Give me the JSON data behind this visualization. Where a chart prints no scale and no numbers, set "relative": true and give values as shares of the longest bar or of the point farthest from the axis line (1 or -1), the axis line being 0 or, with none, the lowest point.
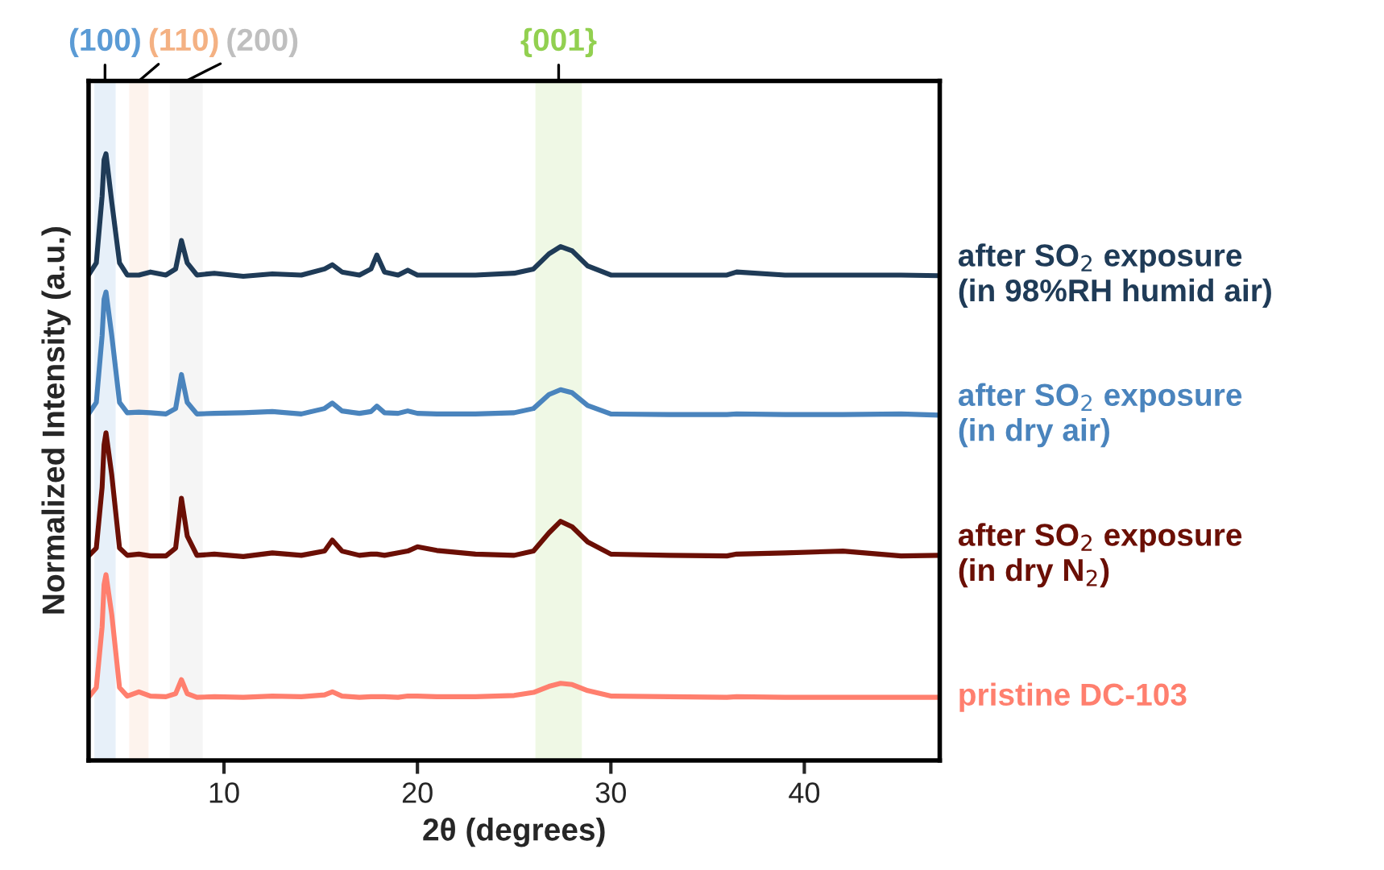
{
  "chart_data": {
    "type": "line",
    "relative": true,
    "xlabel": "2θ (degrees)",
    "ylabel": "Normalized Intensity (a.u.)",
    "xlim": [
      3,
      47
    ],
    "xticks": [
      10,
      20,
      30,
      40
    ],
    "grid": false,
    "legend": false,
    "tick_labels": "x",
    "line_style": "solid",
    "marker": "none",
    "x": [
      3,
      3.4,
      3.7,
      3.8,
      3.9,
      4.2,
      4.6,
      5.0,
      5.6,
      6.2,
      7.0,
      7.5,
      7.8,
      8.1,
      8.6,
      9.5,
      11,
      12.5,
      14,
      15.2,
      15.6,
      16.1,
      17,
      17.6,
      17.9,
      18.3,
      19,
      19.5,
      20,
      21,
      23,
      25,
      26,
      26.8,
      27.4,
      28,
      28.8,
      30,
      33,
      36,
      36.5,
      39,
      42,
      45,
      47
    ],
    "series": [
      {
        "name": "after SO$_{2}$ exposure\n(in 98%RH humid air)",
        "color": "#1f3b57",
        "values": [
          0.8,
          0.82,
          0.93,
          0.99,
          1.0,
          0.92,
          0.82,
          0.8,
          0.8,
          0.805,
          0.8,
          0.81,
          0.857,
          0.82,
          0.8,
          0.803,
          0.798,
          0.802,
          0.8,
          0.81,
          0.817,
          0.805,
          0.8,
          0.81,
          0.833,
          0.805,
          0.8,
          0.808,
          0.8,
          0.8,
          0.8,
          0.803,
          0.81,
          0.835,
          0.847,
          0.84,
          0.815,
          0.8,
          0.8,
          0.8,
          0.805,
          0.8,
          0.8,
          0.8,
          0.799
        ]
      },
      {
        "name": "after SO$_{2}$ exposure\n(in dry air)",
        "color": "#4a84bd",
        "values": [
          0.571,
          0.59,
          0.7,
          0.76,
          0.772,
          0.7,
          0.59,
          0.573,
          0.574,
          0.573,
          0.571,
          0.58,
          0.636,
          0.59,
          0.571,
          0.572,
          0.573,
          0.575,
          0.571,
          0.58,
          0.589,
          0.576,
          0.572,
          0.575,
          0.584,
          0.573,
          0.572,
          0.576,
          0.572,
          0.571,
          0.571,
          0.573,
          0.58,
          0.603,
          0.611,
          0.606,
          0.585,
          0.571,
          0.57,
          0.57,
          0.571,
          0.57,
          0.57,
          0.571,
          0.569
        ]
      },
      {
        "name": "after SO$_{2}$ exposure\n(in dry N$_{2}$)",
        "color": "#6b0f05",
        "values": [
          0.337,
          0.35,
          0.45,
          0.52,
          0.54,
          0.47,
          0.35,
          0.338,
          0.34,
          0.337,
          0.337,
          0.35,
          0.432,
          0.37,
          0.338,
          0.34,
          0.336,
          0.342,
          0.338,
          0.345,
          0.363,
          0.345,
          0.338,
          0.34,
          0.34,
          0.338,
          0.342,
          0.345,
          0.352,
          0.346,
          0.34,
          0.338,
          0.345,
          0.375,
          0.394,
          0.385,
          0.36,
          0.34,
          0.338,
          0.337,
          0.34,
          0.342,
          0.345,
          0.337,
          0.338
        ]
      },
      {
        "name": "pristine DC-103",
        "color": "#ff7f6e",
        "values": [
          0.104,
          0.12,
          0.22,
          0.29,
          0.306,
          0.24,
          0.12,
          0.106,
          0.113,
          0.106,
          0.105,
          0.11,
          0.133,
          0.11,
          0.104,
          0.105,
          0.104,
          0.106,
          0.105,
          0.108,
          0.113,
          0.106,
          0.104,
          0.105,
          0.105,
          0.105,
          0.104,
          0.106,
          0.106,
          0.105,
          0.105,
          0.107,
          0.112,
          0.122,
          0.127,
          0.125,
          0.115,
          0.106,
          0.105,
          0.104,
          0.105,
          0.104,
          0.104,
          0.104,
          0.104
        ]
      }
    ],
    "bands": [
      {
        "axis": "x",
        "from": 3.3,
        "to": 4.4,
        "label": "(100)",
        "color": "#5b9bd5"
      },
      {
        "axis": "x",
        "from": 5.1,
        "to": 6.1,
        "label": "(110)",
        "color": "#f4b183"
      },
      {
        "axis": "x",
        "from": 7.2,
        "to": 8.9,
        "label": "(200)",
        "color": "#bfbfbf"
      },
      {
        "axis": "x",
        "from": 26.1,
        "to": 28.5,
        "label": "{001}",
        "color": "#92d050"
      }
    ]
  }
}
